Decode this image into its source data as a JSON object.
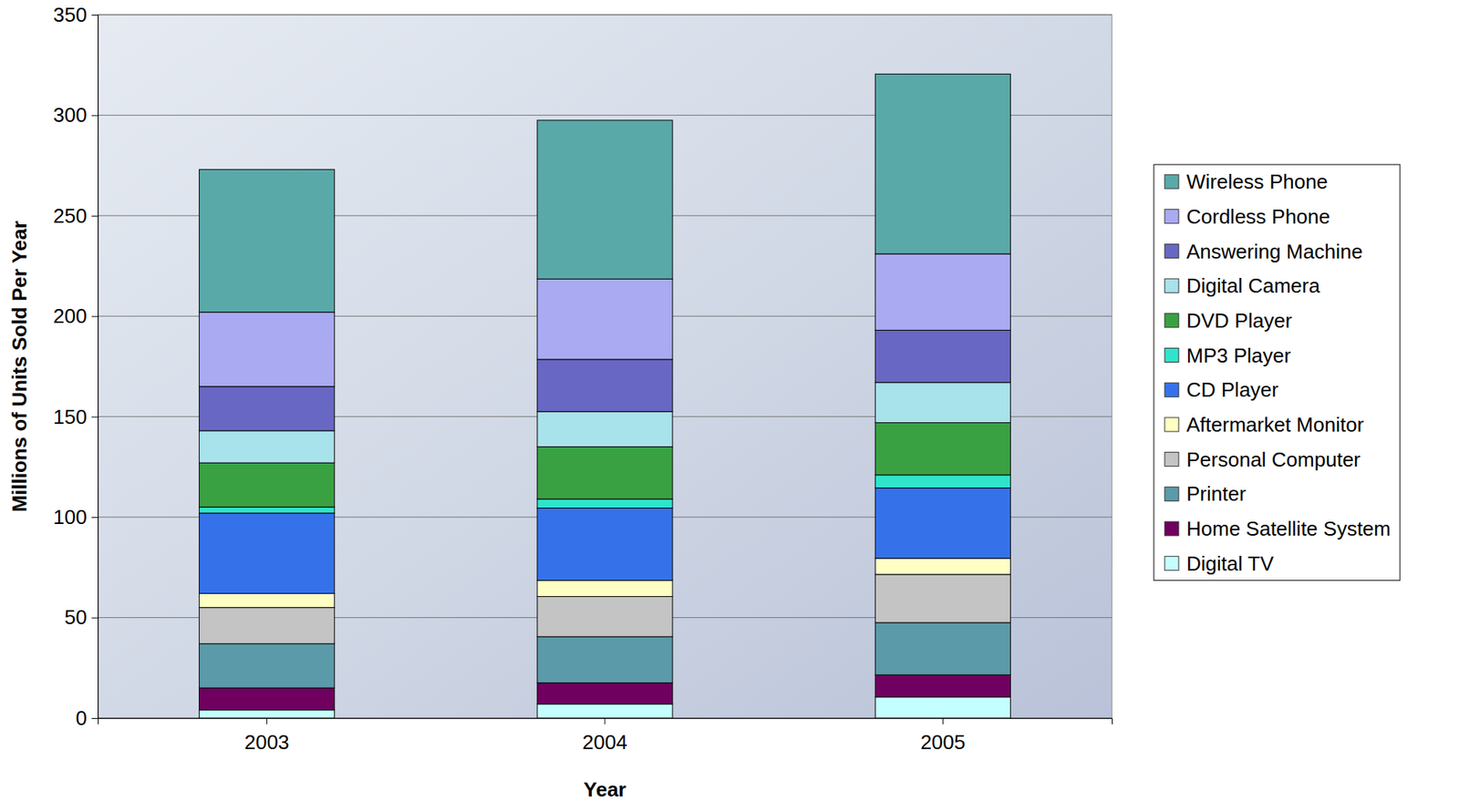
{
  "chart_data": {
    "type": "bar",
    "stacked": true,
    "x_label": "Year",
    "y_label": "Millions of Units Sold Per Year",
    "categories": [
      "2003",
      "2004",
      "2005"
    ],
    "ylim": [
      0,
      350
    ],
    "yticks": [
      0,
      50,
      100,
      150,
      200,
      250,
      300,
      350
    ],
    "grid": true,
    "legend": "right",
    "series": [
      {
        "name": "Digital TV",
        "color": "#c4ffff",
        "values": [
          4,
          7,
          10.5
        ]
      },
      {
        "name": "Home Satellite System",
        "color": "#700060",
        "values": [
          11,
          10.5,
          11
        ]
      },
      {
        "name": "Printer",
        "color": "#5b9aa8",
        "values": [
          22,
          23,
          26
        ]
      },
      {
        "name": "Personal Computer",
        "color": "#c4c4c4",
        "values": [
          18,
          20,
          24
        ]
      },
      {
        "name": "Aftermarket Monitor",
        "color": "#ffffc4",
        "values": [
          7,
          8,
          8
        ]
      },
      {
        "name": "CD Player",
        "color": "#3572ea",
        "values": [
          40,
          36,
          35
        ]
      },
      {
        "name": "MP3 Player",
        "color": "#30e4cc",
        "values": [
          3,
          4.5,
          6.5
        ]
      },
      {
        "name": "DVD Player",
        "color": "#3aa142",
        "values": [
          22,
          26,
          26
        ]
      },
      {
        "name": "Digital Camera",
        "color": "#a8e2ea",
        "values": [
          16,
          17.5,
          20
        ]
      },
      {
        "name": "Answering Machine",
        "color": "#6868c4",
        "values": [
          22,
          26,
          26
        ]
      },
      {
        "name": "Cordless Phone",
        "color": "#aaaaf2",
        "values": [
          37,
          40,
          38
        ]
      },
      {
        "name": "Wireless Phone",
        "color": "#5aa9a9",
        "values": [
          71,
          79,
          89.5
        ]
      }
    ]
  }
}
